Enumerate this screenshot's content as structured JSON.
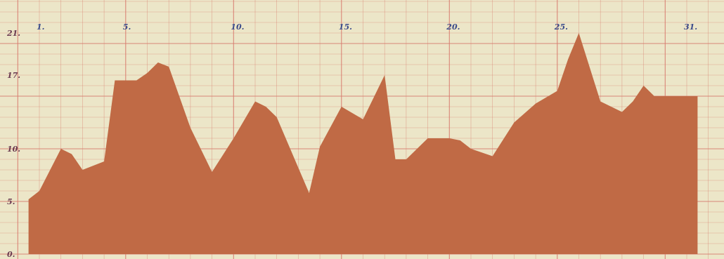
{
  "chart_data": {
    "type": "area",
    "title": "",
    "xlabel": "",
    "ylabel": "",
    "color": "#c06a45",
    "grid": true,
    "grid_color": "#d77b6e",
    "background": "#ece6c8",
    "xlim": [
      0.5,
      31.5
    ],
    "ylim": [
      0,
      23
    ],
    "x_ticks": [
      {
        "value": 1,
        "label": "1."
      },
      {
        "value": 5,
        "label": "5."
      },
      {
        "value": 10,
        "label": "10."
      },
      {
        "value": 15,
        "label": "15."
      },
      {
        "value": 20,
        "label": "20."
      },
      {
        "value": 25,
        "label": "25."
      },
      {
        "value": 31,
        "label": "31."
      }
    ],
    "y_ticks": [
      {
        "value": 0,
        "label": "0."
      },
      {
        "value": 5,
        "label": "5."
      },
      {
        "value": 10,
        "label": "10."
      },
      {
        "value": 17,
        "label": "17."
      },
      {
        "value": 21,
        "label": "21."
      }
    ],
    "x": [
      0.5,
      1,
      2,
      2.5,
      3,
      4,
      4.5,
      5,
      5.5,
      6,
      6.5,
      7,
      8,
      9,
      10,
      11,
      11.5,
      12,
      13,
      13.5,
      14,
      15,
      16,
      17,
      17.5,
      18,
      19,
      20,
      20.5,
      21,
      22,
      23,
      24,
      25,
      25.5,
      26,
      27,
      28,
      28.5,
      29,
      29.5,
      30,
      31,
      31.5
    ],
    "values": [
      5.2,
      6.0,
      10.0,
      9.5,
      8.0,
      8.8,
      16.5,
      16.5,
      16.5,
      17.2,
      18.2,
      17.8,
      12.0,
      7.8,
      11.0,
      14.5,
      14.0,
      13.0,
      8.2,
      5.8,
      10.2,
      14.0,
      12.8,
      17.0,
      9.0,
      9.0,
      11.0,
      11.0,
      10.8,
      10.0,
      9.3,
      12.5,
      14.3,
      15.5,
      18.5,
      21.0,
      14.5,
      13.5,
      14.5,
      16.0,
      15.0,
      15.0,
      15.0,
      15.0
    ]
  }
}
